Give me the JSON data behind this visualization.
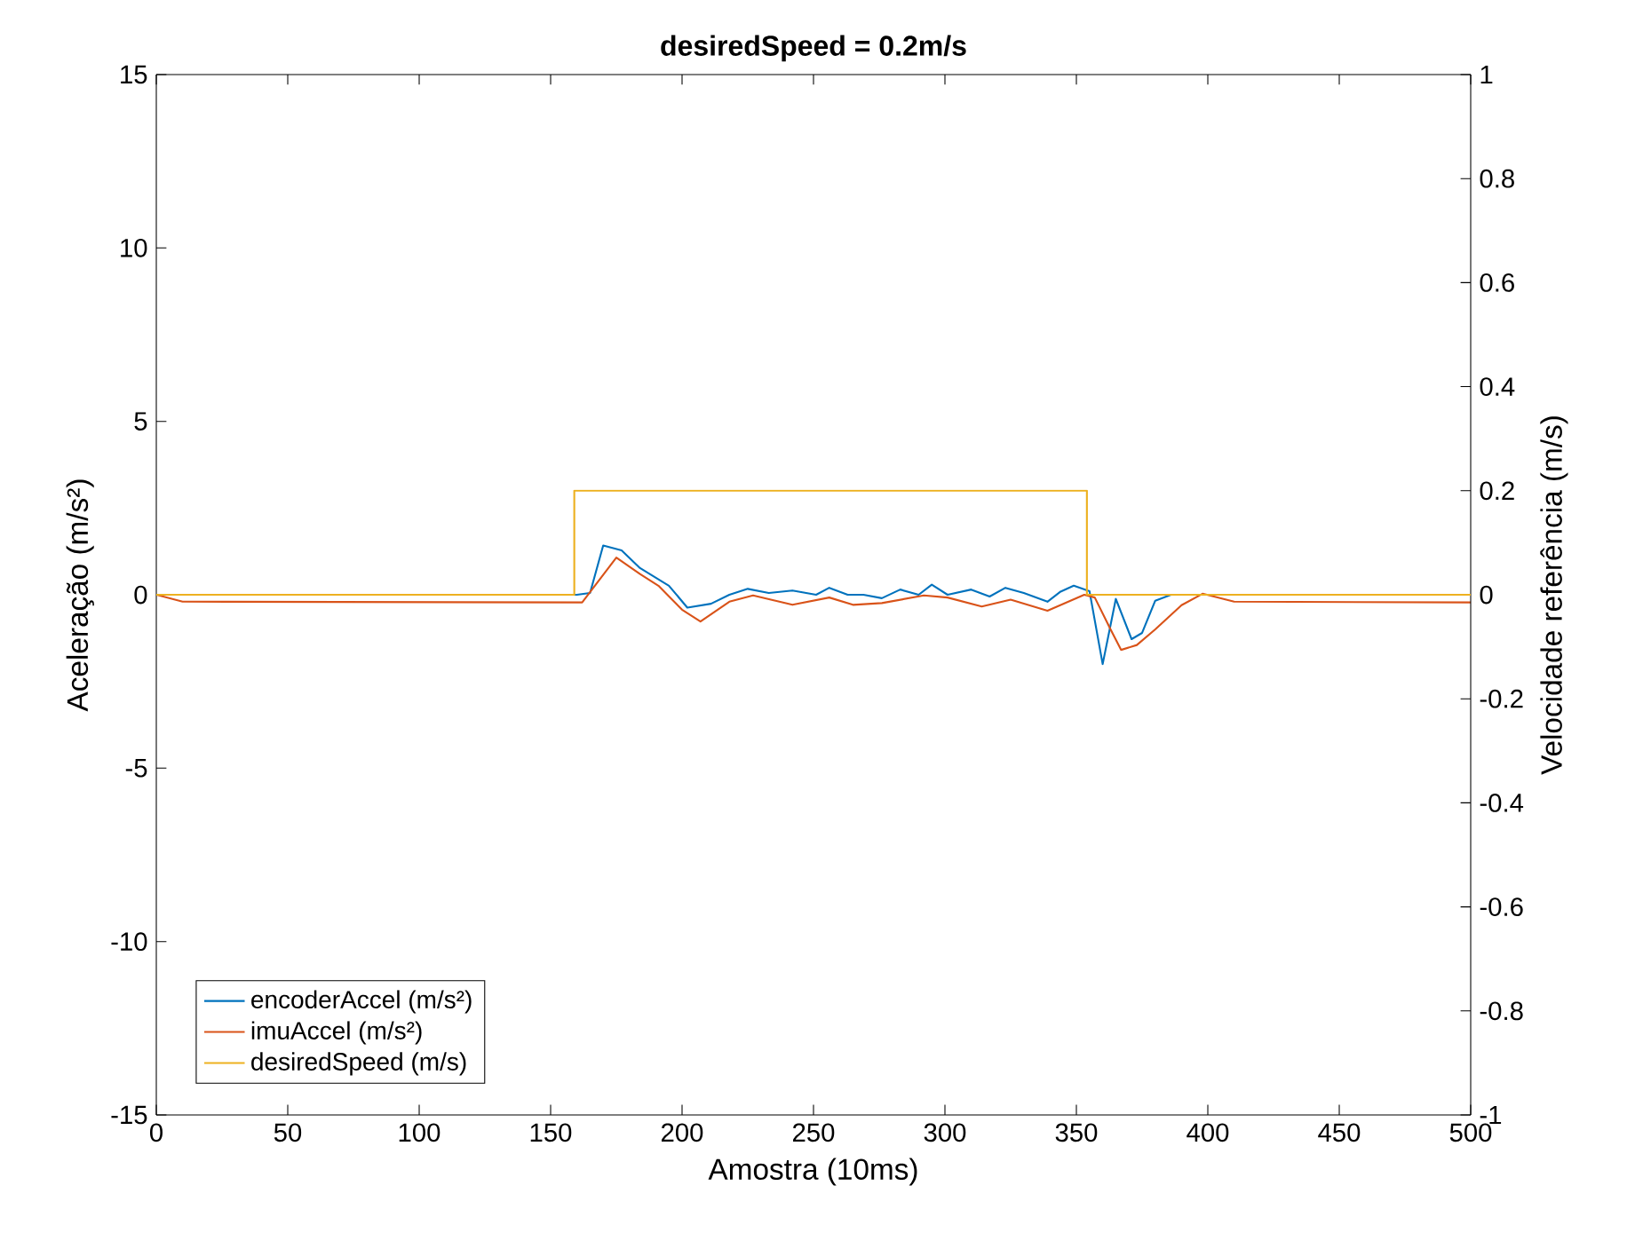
{
  "chart_data": {
    "type": "line",
    "title": "**desiredSpeed = 0.2m/s**",
    "xlabel": "Amostra (10ms)",
    "ylabel": "Aceleração (m/s²)",
    "y2label": "Velocidade referência (m/s)",
    "xlim": [
      0,
      500
    ],
    "xticks": [
      0,
      50,
      100,
      150,
      200,
      250,
      300,
      350,
      400,
      450,
      500
    ],
    "ylim": [
      -15,
      15
    ],
    "yticks": [
      -15,
      -10,
      -5,
      0,
      5,
      10,
      15
    ],
    "y2lim": [
      -1,
      1
    ],
    "y2ticks": [
      -1,
      -0.8,
      -0.6,
      -0.4,
      -0.2,
      0,
      0.2,
      0.4,
      0.6,
      0.8,
      1
    ],
    "legend": "bottom left",
    "grid": false,
    "series": [
      {
        "name": "encoderAccel (m/s²)",
        "color": "#0072bd",
        "x": [
          0,
          160,
          165,
          170,
          177,
          184,
          195,
          202,
          211,
          218,
          225,
          233,
          242,
          251,
          256,
          263,
          269,
          276,
          283,
          290,
          295,
          301,
          310,
          317,
          323,
          330,
          339,
          344,
          349,
          355,
          360,
          365,
          371,
          375,
          380,
          386,
          400,
          500
        ],
        "values": [
          0,
          0,
          0.05,
          1.42,
          1.28,
          0.77,
          0.26,
          -0.37,
          -0.26,
          0,
          0.17,
          0.05,
          0.12,
          0,
          0.2,
          0,
          0,
          -0.1,
          0.15,
          0,
          0.29,
          0,
          0.15,
          -0.05,
          0.2,
          0.05,
          -0.2,
          0.09,
          0.26,
          0.1,
          -2.0,
          -0.12,
          -1.28,
          -1.1,
          -0.17,
          0,
          0,
          0
        ]
      },
      {
        "name": "imuAccel (m/s²)",
        "color": "#d95319",
        "x": [
          0,
          10,
          162,
          175,
          184,
          191,
          200,
          207,
          218,
          227,
          242,
          256,
          265,
          276,
          292,
          301,
          314,
          325,
          339,
          353,
          357,
          363,
          367,
          373,
          380,
          390,
          398,
          410,
          500
        ],
        "values": [
          0,
          -0.2,
          -0.22,
          1.07,
          0.6,
          0.26,
          -0.43,
          -0.77,
          -0.2,
          -0.02,
          -0.29,
          -0.08,
          -0.29,
          -0.24,
          -0.02,
          -0.08,
          -0.34,
          -0.14,
          -0.46,
          0,
          -0.08,
          -1.0,
          -1.59,
          -1.45,
          -1.0,
          -0.3,
          0.03,
          -0.2,
          -0.22
        ]
      },
      {
        "name": "desiredSpeed (m/s)",
        "color": "#edb120",
        "type": "step",
        "axis": "y2",
        "x": [
          0,
          159,
          354,
          500
        ],
        "values": [
          0,
          0.2,
          0,
          0
        ]
      }
    ]
  }
}
